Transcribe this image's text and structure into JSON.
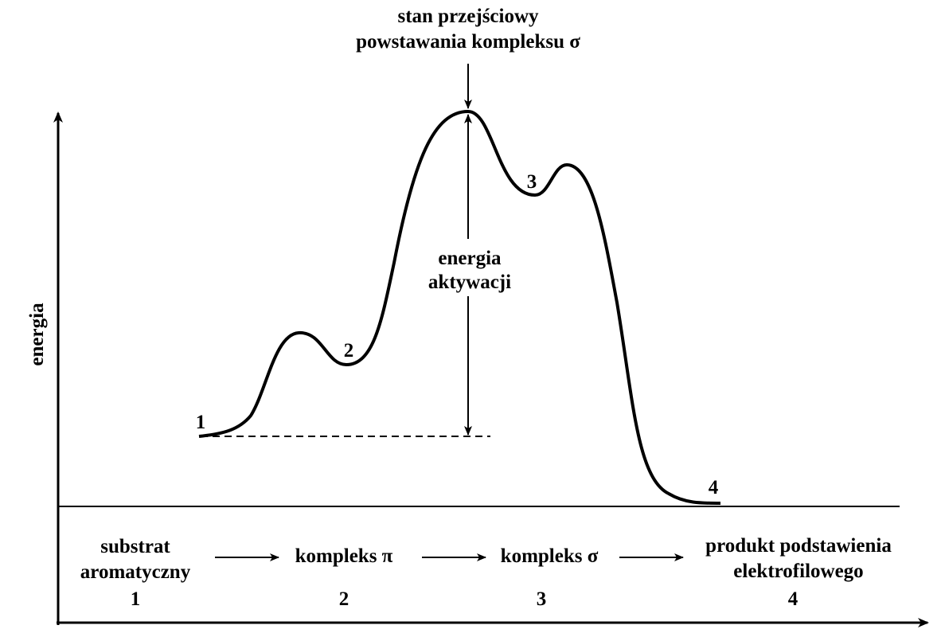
{
  "top_label": {
    "line1": "stan przejściowy",
    "line2": "powstawania kompleksu σ"
  },
  "y_axis_label": "energia",
  "activation_label": {
    "line1": "energia",
    "line2": "aktywacji"
  },
  "point_labels": [
    "1",
    "2",
    "3",
    "4"
  ],
  "stages": [
    {
      "line1": "substrat",
      "line2": "aromatyczny",
      "number": "1"
    },
    {
      "line1": "kompleks π",
      "number": "2"
    },
    {
      "line1": "kompleks σ",
      "number": "3"
    },
    {
      "line1": "produkt podstawienia",
      "line2": "elektrofilowego",
      "number": "4"
    }
  ],
  "colors": {
    "ink": "#000000",
    "background": "#ffffff"
  }
}
